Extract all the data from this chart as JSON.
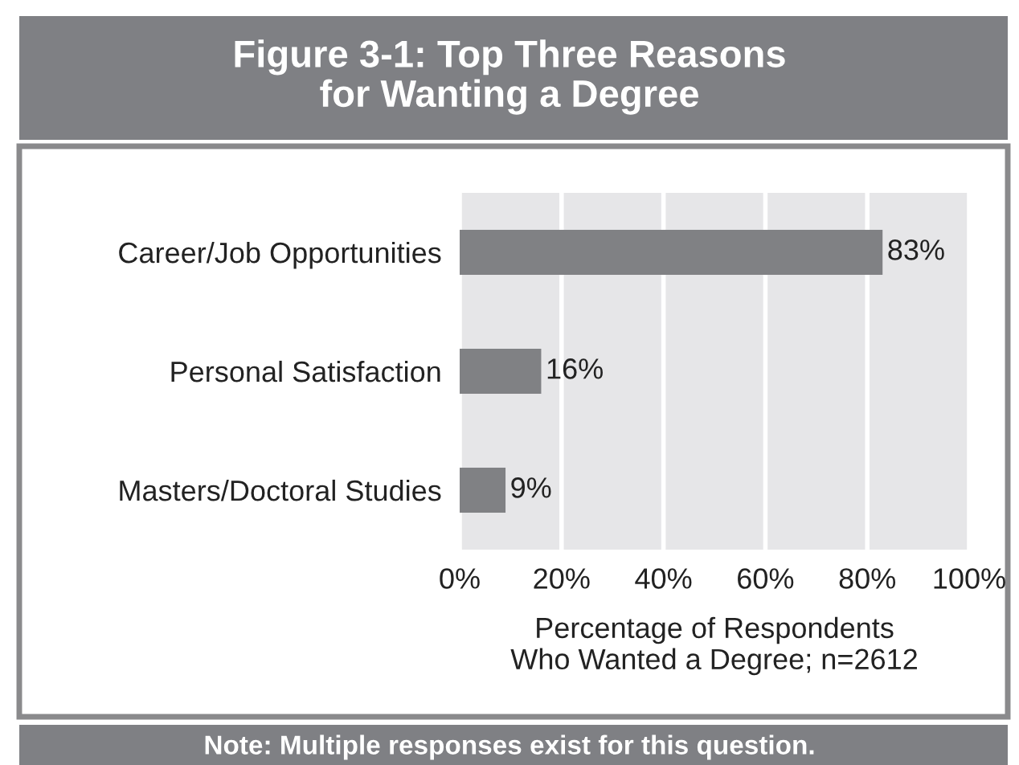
{
  "chart_data": {
    "type": "bar",
    "orientation": "horizontal",
    "title": "Figure 3-1: Top Three Reasons\nfor Wanting a Degree",
    "categories": [
      "Career/Job Opportunities",
      "Personal Satisfaction",
      "Masters/Doctoral Studies"
    ],
    "values": [
      83,
      16,
      9
    ],
    "value_labels": [
      "83%",
      "16%",
      "9%"
    ],
    "color": "#808184",
    "xlim": [
      0,
      100
    ],
    "xticks": [
      {
        "value": 0,
        "label": "0%"
      },
      {
        "value": 20,
        "label": "20%"
      },
      {
        "value": 40,
        "label": "40%"
      },
      {
        "value": 60,
        "label": "60%"
      },
      {
        "value": 80,
        "label": "80%"
      },
      {
        "value": 100,
        "label": "100%"
      }
    ],
    "xlabel": "Percentage of Respondents\nWho Wanted a Degree; n=2612",
    "grid": "x",
    "annotations": [
      "Note: Multiple responses exist for this question."
    ]
  }
}
